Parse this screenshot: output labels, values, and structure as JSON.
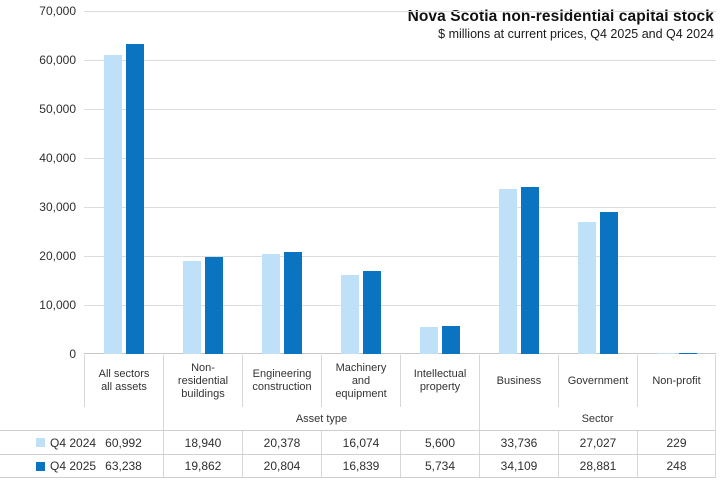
{
  "chart_data": {
    "type": "bar",
    "title": "Nova Scotia non-residential capital stock",
    "subtitle": "$ millions at current prices, Q4 2025 and Q4 2024",
    "ylim": [
      0,
      70000
    ],
    "grid": true,
    "legend_position": "data-table-left",
    "y_ticks": [
      {
        "value": 0,
        "label": "0"
      },
      {
        "value": 10000,
        "label": "10,000"
      },
      {
        "value": 20000,
        "label": "20,000"
      },
      {
        "value": 30000,
        "label": "30,000"
      },
      {
        "value": 40000,
        "label": "40,000"
      },
      {
        "value": 50000,
        "label": "50,000"
      },
      {
        "value": 60000,
        "label": "60,000"
      },
      {
        "value": 70000,
        "label": "70,000"
      }
    ],
    "categories": [
      {
        "label": "All sectors all assets",
        "lines": [
          "All sectors",
          "all assets"
        ]
      },
      {
        "label": "Non-residential buildings",
        "lines": [
          "Non-",
          "residential",
          "buildings"
        ]
      },
      {
        "label": "Engineering construction",
        "lines": [
          "Engineering",
          "construction"
        ]
      },
      {
        "label": "Machinery and equipment",
        "lines": [
          "Machinery",
          "and",
          "equipment"
        ]
      },
      {
        "label": "Intellectual property",
        "lines": [
          "Intellectual",
          "property"
        ]
      },
      {
        "label": "Business",
        "lines": [
          "Business"
        ]
      },
      {
        "label": "Government",
        "lines": [
          "Government"
        ]
      },
      {
        "label": "Non-profit",
        "lines": [
          "Non-profit"
        ]
      }
    ],
    "axis_group_labels": [
      {
        "label": "Asset type",
        "start_col": 1,
        "end_col": 4
      },
      {
        "label": "Sector",
        "start_col": 5,
        "end_col": 7
      }
    ],
    "series": [
      {
        "name": "Q4 2024",
        "color": "#bfe1f8",
        "values": [
          60992,
          18940,
          20378,
          16074,
          5600,
          33736,
          27027,
          229
        ],
        "display": [
          "60,992",
          "18,940",
          "20,378",
          "16,074",
          "5,600",
          "33,736",
          "27,027",
          "229"
        ]
      },
      {
        "name": "Q4 2025",
        "color": "#0b74c0",
        "values": [
          63238,
          19862,
          20804,
          16839,
          5734,
          34109,
          28881,
          248
        ],
        "display": [
          "63,238",
          "19,862",
          "20,804",
          "16,839",
          "5,734",
          "34,109",
          "28,881",
          "248"
        ]
      }
    ]
  }
}
